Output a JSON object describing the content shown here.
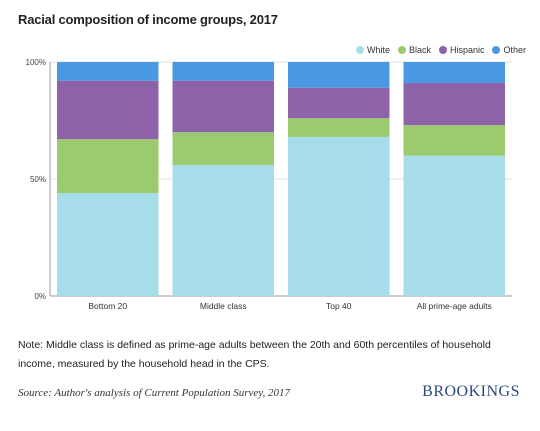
{
  "colors": {
    "White": "#a6dde9",
    "Black": "#9cca6e",
    "Hispanic": "#8d62a9",
    "Other": "#4a97e2"
  },
  "chart_data": {
    "type": "bar",
    "stacked": true,
    "title": "Racial composition of income groups, 2017",
    "categories": [
      "Bottom 20",
      "Middle class",
      "Top 40",
      "All prime-age adults"
    ],
    "series": [
      {
        "name": "White",
        "values": [
          44,
          56,
          68,
          60
        ]
      },
      {
        "name": "Black",
        "values": [
          23,
          14,
          8,
          13
        ]
      },
      {
        "name": "Hispanic",
        "values": [
          25,
          22,
          13,
          18
        ]
      },
      {
        "name": "Other",
        "values": [
          8,
          8,
          11,
          9
        ]
      }
    ],
    "ylim": [
      0,
      100
    ],
    "yticks": [
      {
        "value": 0,
        "label": "0%"
      },
      {
        "value": 50,
        "label": "50%"
      },
      {
        "value": 100,
        "label": "100%"
      }
    ],
    "legend_position": "top-right",
    "grid": true
  },
  "note": "Note: Middle class is defined as prime-age adults between the 20th and 60th percentiles of household income, measured by the household head in the CPS.",
  "source": "Source: Author's analysis of Current Population Survey, 2017",
  "brand": "BROOKINGS"
}
